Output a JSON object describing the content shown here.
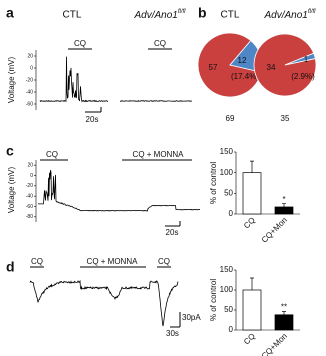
{
  "chart_data": [
    {
      "type": "trace",
      "panel": "a",
      "titles": [
        "CTL",
        "Adv/Ano1"
      ],
      "title_superscript": "fl/fl",
      "ylabel": "Voltage (mV)",
      "ylim": [
        -70,
        30
      ],
      "yticks": [
        -60,
        -40,
        -20,
        0,
        20
      ],
      "stimulus_labels": [
        "CQ",
        "CQ"
      ],
      "scale_bars": [
        "20s"
      ]
    },
    {
      "type": "pie",
      "panel": "b",
      "title": "CTL",
      "values": [
        57,
        12
      ],
      "colors": [
        "#c9403f",
        "#4f86c6"
      ],
      "annotation": "(17.4%)",
      "total": 69
    },
    {
      "type": "pie",
      "title": "Adv/Ano1",
      "title_superscript": "fl/fl",
      "values": [
        34,
        1
      ],
      "colors": [
        "#c9403f",
        "#4f86c6"
      ],
      "annotation": "(2.9%)",
      "total": 35
    },
    {
      "type": "trace",
      "panel": "c",
      "ylabel": "Voltage (mV)",
      "ylim": [
        -90,
        30
      ],
      "yticks": [
        -80,
        -60,
        -40,
        -20,
        0,
        20
      ],
      "stimulus_labels": [
        "CQ",
        "CQ + MONNA"
      ],
      "scale_bars": [
        "20s"
      ]
    },
    {
      "type": "bar",
      "categories": [
        "CQ",
        "CQ+Mon"
      ],
      "values": [
        100,
        17
      ],
      "errors": [
        28,
        8
      ],
      "colors": [
        "#ffffff",
        "#000000"
      ],
      "ylabel": "% of control",
      "ylim": [
        0,
        150
      ],
      "yticks": [
        0,
        50,
        100,
        150
      ],
      "significance": "*"
    },
    {
      "type": "trace",
      "panel": "d",
      "stimulus_labels": [
        "CQ",
        "CQ + MONNA",
        "CQ"
      ],
      "scale_bars": [
        "30pA",
        "30s"
      ]
    },
    {
      "type": "bar",
      "categories": [
        "CQ",
        "CQ+Mon"
      ],
      "values": [
        100,
        38
      ],
      "errors": [
        30,
        8
      ],
      "colors": [
        "#ffffff",
        "#000000"
      ],
      "ylabel": "% of control",
      "ylim": [
        0,
        150
      ],
      "yticks": [
        0,
        50,
        100,
        150
      ],
      "significance": "**"
    }
  ]
}
